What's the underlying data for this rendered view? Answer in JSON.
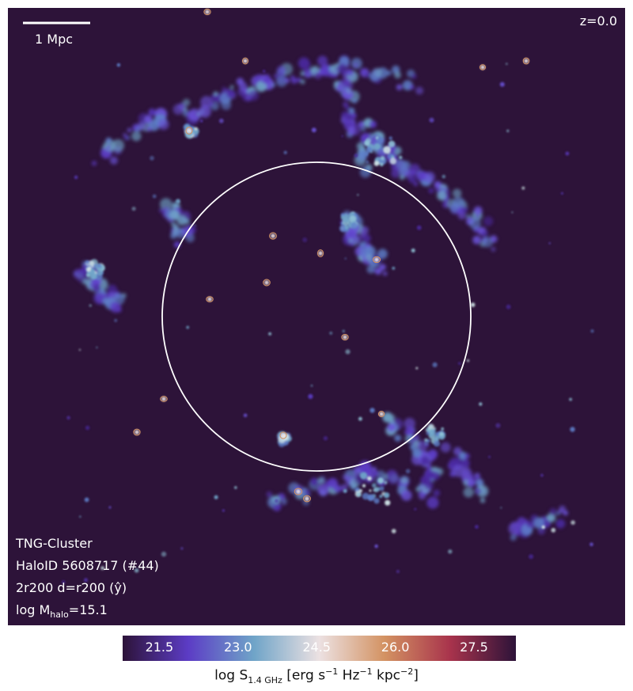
{
  "panel": {
    "background": "#2d1339",
    "redshift": "z=0.0",
    "scalebar_label": "1 Mpc",
    "info": {
      "line1": "TNG-Cluster",
      "line2": "HaloID 5608717 (#44)",
      "line3": "2r200 d=r200 (ŷ)",
      "line4_prefix": "log M",
      "line4_sub": "halo",
      "line4_suffix": "=15.1"
    }
  },
  "colorbar": {
    "ticks": [
      "21.5",
      "23.0",
      "24.5",
      "26.0",
      "27.5"
    ],
    "range": [
      20.8,
      28.3
    ],
    "tick_values": [
      21.5,
      23.0,
      24.5,
      26.0,
      27.5
    ],
    "colors": [
      "#2d1339",
      "#5c3cc5",
      "#6fa4c8",
      "#ece1e2",
      "#d39262",
      "#a8334c",
      "#2d1339"
    ],
    "label": {
      "pre": "log S",
      "sub": "1.4 GHz",
      "unit_a": " [erg s",
      "sup1": "−1",
      "unit_b": " Hz",
      "sup2": "−1",
      "unit_c": " kpc",
      "sup3": "−2",
      "unit_d": "]"
    }
  }
}
